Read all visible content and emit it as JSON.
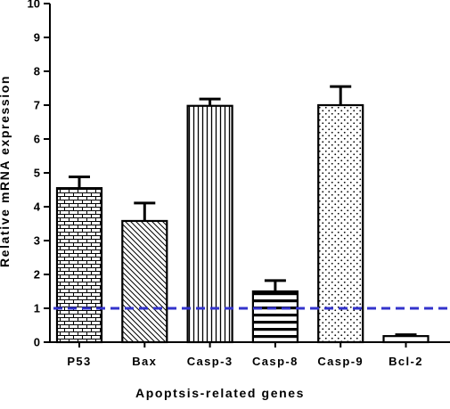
{
  "chart_data": {
    "type": "bar",
    "title": "",
    "xlabel": "Apoptsis-related genes",
    "ylabel": "Relative mRNA expression",
    "ylim": [
      0,
      10
    ],
    "yticks": [
      0,
      1,
      2,
      3,
      4,
      5,
      6,
      7,
      8,
      9,
      10
    ],
    "categories": [
      "P53",
      "Bax",
      "Casp-3",
      "Casp-8",
      "Casp-9",
      "Bcl-2"
    ],
    "values": [
      4.55,
      3.58,
      6.98,
      1.5,
      7.0,
      0.18
    ],
    "error": [
      0.33,
      0.53,
      0.2,
      0.32,
      0.55,
      0.04
    ],
    "patterns": [
      "brick",
      "diagonal",
      "vertical-lines",
      "horizontal-lines",
      "dots",
      "blank"
    ],
    "reference_line": {
      "y": 1,
      "style": "dashed",
      "color": "#3333cc"
    },
    "bar_color": "#000000",
    "grid": false,
    "legend": "none"
  }
}
